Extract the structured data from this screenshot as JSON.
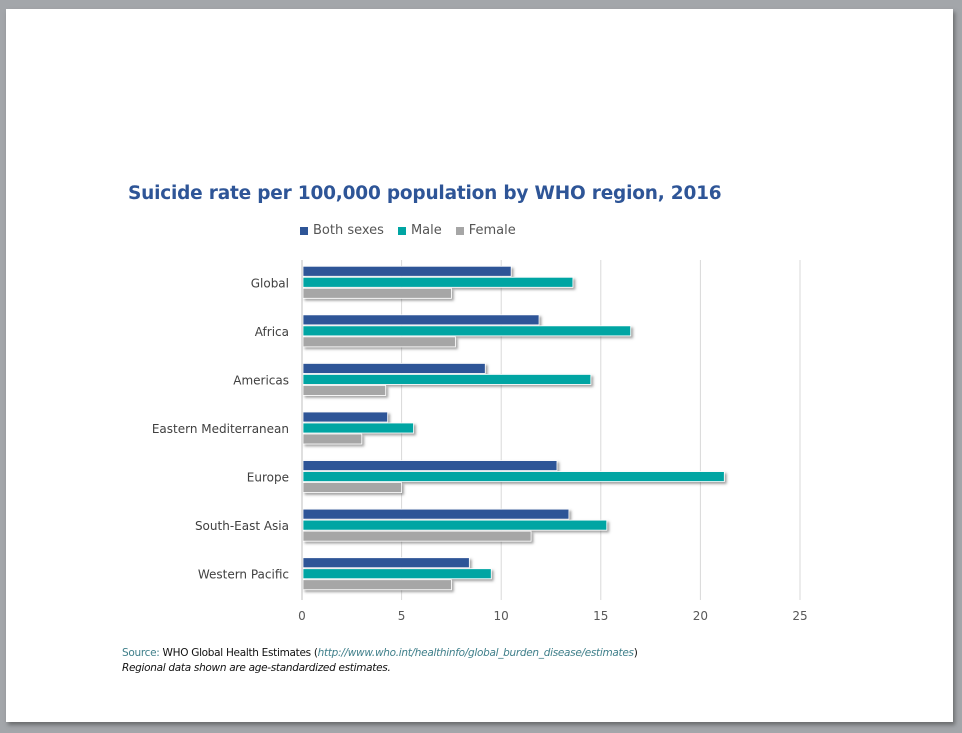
{
  "chart_data": {
    "type": "bar",
    "orientation": "horizontal",
    "title": "Suicide rate per 100,000 population by WHO region, 2016",
    "categories": [
      "Global",
      "Africa",
      "Americas",
      "Eastern Mediterranean",
      "Europe",
      "South-East Asia",
      "Western Pacific"
    ],
    "series": [
      {
        "name": "Both sexes",
        "color": "#2e5597",
        "values": [
          10.5,
          11.9,
          9.2,
          4.3,
          12.8,
          13.4,
          8.4
        ]
      },
      {
        "name": "Male",
        "color": "#00a5a3",
        "values": [
          13.6,
          16.5,
          14.5,
          5.6,
          21.2,
          15.3,
          9.5
        ]
      },
      {
        "name": "Female",
        "color": "#a6a6a6",
        "values": [
          7.5,
          7.7,
          4.2,
          3.0,
          5.0,
          11.5,
          7.5
        ]
      }
    ],
    "xlabel": "",
    "ylabel": "",
    "xlim": [
      0,
      25
    ],
    "xticks": [
      "0",
      "5",
      "10",
      "15",
      "20",
      "25"
    ],
    "grid": true,
    "legend_position": "top"
  },
  "source": {
    "label": "Source:",
    "text": " WHO Global Health Estimates (",
    "url": "http://www.who.int/healthinfo/global_burden_disease/estimates",
    "close": ")"
  },
  "note": "Regional data shown are age-standardized estimates."
}
